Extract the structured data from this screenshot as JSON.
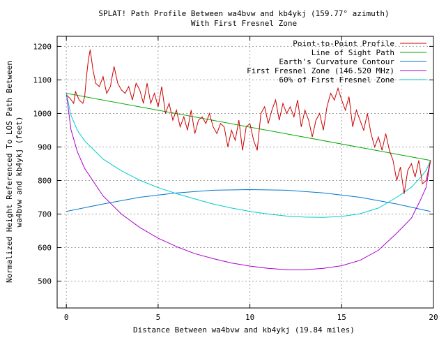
{
  "chart_data": {
    "type": "line",
    "title": "SPLAT! Path Profile Between wa4bvw and kb4ykj (159.77° azimuth)",
    "subtitle": "With First Fresnel Zone",
    "xlabel": "Distance Between wa4bvw and kb4ykj (19.84 miles)",
    "ylabel_line1": "Normalized Height Referenced To LOS Path Between",
    "ylabel_line2": "wa4bvw and kb4ykj (feet)",
    "xlim": [
      -0.5,
      20
    ],
    "ylim": [
      420,
      1230
    ],
    "xticks": [
      0,
      5,
      10,
      15,
      20
    ],
    "yticks": [
      500,
      600,
      700,
      800,
      900,
      1000,
      1100,
      1200
    ],
    "grid": true,
    "legend_position": "top-right",
    "series": [
      {
        "name": "Point-to-Point Profile",
        "color": "#cc0000",
        "x": [
          0,
          0.2,
          0.4,
          0.5,
          0.7,
          0.9,
          1.0,
          1.1,
          1.2,
          1.3,
          1.45,
          1.6,
          1.8,
          2.0,
          2.2,
          2.4,
          2.5,
          2.6,
          2.8,
          3.0,
          3.2,
          3.4,
          3.6,
          3.8,
          4.0,
          4.2,
          4.4,
          4.6,
          4.8,
          5.0,
          5.2,
          5.4,
          5.6,
          5.8,
          6.0,
          6.2,
          6.4,
          6.6,
          6.8,
          7.0,
          7.2,
          7.4,
          7.6,
          7.8,
          8.0,
          8.2,
          8.4,
          8.6,
          8.8,
          9.0,
          9.2,
          9.4,
          9.6,
          9.8,
          10.0,
          10.2,
          10.4,
          10.6,
          10.8,
          11.0,
          11.2,
          11.4,
          11.6,
          11.8,
          12.0,
          12.2,
          12.4,
          12.6,
          12.8,
          13.0,
          13.2,
          13.4,
          13.6,
          13.8,
          14.0,
          14.2,
          14.4,
          14.6,
          14.8,
          15.0,
          15.2,
          15.4,
          15.6,
          15.8,
          16.0,
          16.2,
          16.4,
          16.6,
          16.8,
          17.0,
          17.2,
          17.4,
          17.6,
          17.8,
          18.0,
          18.2,
          18.4,
          18.6,
          18.8,
          19.0,
          19.2,
          19.4,
          19.6,
          19.84
        ],
        "values": [
          1055,
          1045,
          1030,
          1065,
          1040,
          1030,
          1050,
          1110,
          1160,
          1190,
          1130,
          1090,
          1080,
          1110,
          1060,
          1080,
          1110,
          1140,
          1090,
          1070,
          1060,
          1080,
          1040,
          1090,
          1070,
          1030,
          1090,
          1030,
          1060,
          1020,
          1080,
          1000,
          1030,
          980,
          1010,
          960,
          990,
          950,
          1010,
          940,
          980,
          990,
          970,
          1000,
          960,
          940,
          970,
          960,
          900,
          950,
          920,
          980,
          890,
          960,
          970,
          920,
          890,
          1000,
          1020,
          970,
          1010,
          1040,
          980,
          1030,
          1000,
          1020,
          990,
          1040,
          960,
          1010,
          980,
          930,
          980,
          1000,
          950,
          1020,
          1060,
          1040,
          1075,
          1040,
          1010,
          1050,
          960,
          1010,
          980,
          950,
          1000,
          940,
          900,
          930,
          890,
          940,
          890,
          860,
          800,
          840,
          760,
          830,
          850,
          810,
          860,
          790,
          800,
          860
        ]
      },
      {
        "name": "Line of Sight Path",
        "color": "#00aa00",
        "x": [
          0,
          19.84
        ],
        "values": [
          1060,
          860
        ]
      },
      {
        "name": "Earth's Curvature Contour",
        "color": "#0077cc",
        "x": [
          0,
          2,
          4,
          6,
          8,
          9.92,
          12,
          14,
          16,
          18,
          19.84
        ],
        "values": [
          708,
          730,
          750,
          763,
          771,
          773,
          771,
          763,
          750,
          730,
          708
        ]
      },
      {
        "name": "First Fresnel Zone (146.520 MHz)",
        "color": "#aa00cc",
        "x": [
          0,
          0.25,
          0.6,
          1,
          2,
          3,
          4,
          5,
          6,
          7,
          8,
          9,
          10,
          11,
          12,
          13,
          14,
          15,
          16,
          17,
          18,
          18.8,
          19.3,
          19.6,
          19.84
        ],
        "values": [
          1060,
          952,
          886,
          836,
          754,
          700,
          660,
          628,
          603,
          582,
          567,
          554,
          545,
          538,
          534,
          534,
          538,
          546,
          562,
          592,
          643,
          688,
          743,
          780,
          860
        ]
      },
      {
        "name": "60% of First Fresnel Zone",
        "color": "#00cccc",
        "x": [
          0,
          0.25,
          0.6,
          1,
          2,
          3,
          4,
          5,
          6,
          7,
          8,
          9,
          10,
          11,
          12,
          13,
          14,
          15,
          16,
          17,
          18,
          18.8,
          19.3,
          19.6,
          19.84
        ],
        "values": [
          1060,
          995,
          950,
          918,
          864,
          829,
          801,
          779,
          761,
          745,
          730,
          718,
          708,
          700,
          694,
          691,
          690,
          693,
          701,
          718,
          750,
          780,
          810,
          830,
          860
        ]
      }
    ]
  }
}
